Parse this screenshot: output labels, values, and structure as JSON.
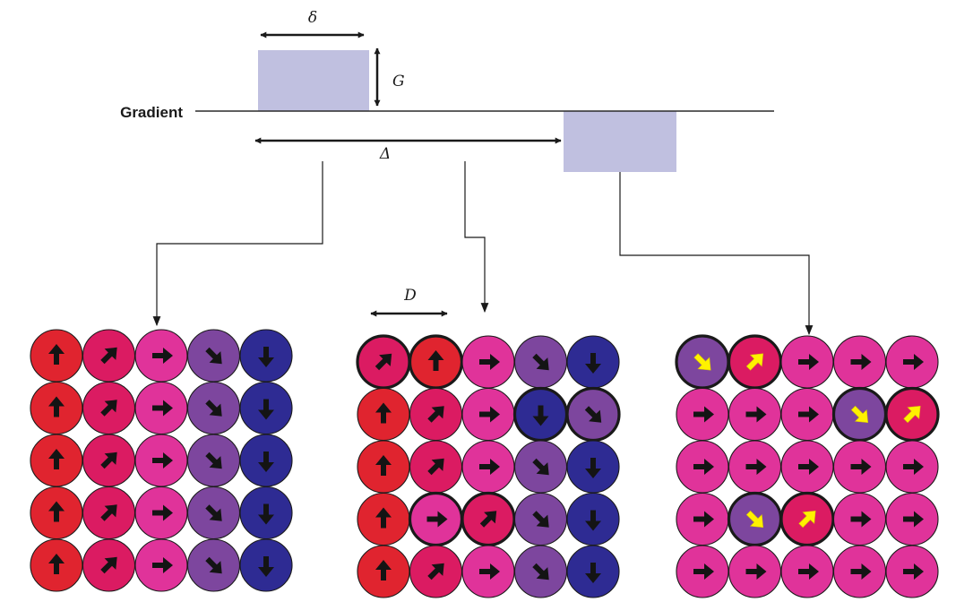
{
  "labels": {
    "gradient": "Gradient",
    "delta_small": "δ",
    "G": "G",
    "Delta_big": "Δ",
    "D": "D"
  },
  "colors": {
    "pulse": "#c0c0e0",
    "line": "#2a2a2a",
    "red": "#e0242f",
    "crimson": "#db1b62",
    "pink": "#e0339a",
    "purple": "#7d469e",
    "navy": "#2e2b93",
    "arrow_black": "#141414",
    "arrow_yellow": "#fff200"
  },
  "grid_legend": {
    "color_codes": {
      "R": "red",
      "C": "crimson",
      "P": "pink",
      "V": "purple",
      "N": "navy"
    },
    "arrow_codes": {
      "U": "up",
      "UR": "up-right",
      "R": "right",
      "DR": "down-right",
      "D": "down"
    }
  },
  "grids": [
    {
      "name": "before-diffusion-grid",
      "cells": [
        [
          [
            "R",
            "U",
            0,
            0
          ],
          [
            "C",
            "UR",
            0,
            0
          ],
          [
            "P",
            "R",
            0,
            0
          ],
          [
            "V",
            "DR",
            0,
            0
          ],
          [
            "N",
            "D",
            0,
            0
          ]
        ],
        [
          [
            "R",
            "U",
            0,
            0
          ],
          [
            "C",
            "UR",
            0,
            0
          ],
          [
            "P",
            "R",
            0,
            0
          ],
          [
            "V",
            "DR",
            0,
            0
          ],
          [
            "N",
            "D",
            0,
            0
          ]
        ],
        [
          [
            "R",
            "U",
            0,
            0
          ],
          [
            "C",
            "UR",
            0,
            0
          ],
          [
            "P",
            "R",
            0,
            0
          ],
          [
            "V",
            "DR",
            0,
            0
          ],
          [
            "N",
            "D",
            0,
            0
          ]
        ],
        [
          [
            "R",
            "U",
            0,
            0
          ],
          [
            "C",
            "UR",
            0,
            0
          ],
          [
            "P",
            "R",
            0,
            0
          ],
          [
            "V",
            "DR",
            0,
            0
          ],
          [
            "N",
            "D",
            0,
            0
          ]
        ],
        [
          [
            "R",
            "U",
            0,
            0
          ],
          [
            "C",
            "UR",
            0,
            0
          ],
          [
            "P",
            "R",
            0,
            0
          ],
          [
            "V",
            "DR",
            0,
            0
          ],
          [
            "N",
            "D",
            0,
            0
          ]
        ]
      ]
    },
    {
      "name": "during-diffusion-grid",
      "cells": [
        [
          [
            "C",
            "UR",
            1,
            0
          ],
          [
            "R",
            "U",
            1,
            0
          ],
          [
            "P",
            "R",
            0,
            0
          ],
          [
            "V",
            "DR",
            0,
            0
          ],
          [
            "N",
            "D",
            0,
            0
          ]
        ],
        [
          [
            "R",
            "U",
            0,
            0
          ],
          [
            "C",
            "UR",
            0,
            0
          ],
          [
            "P",
            "R",
            0,
            0
          ],
          [
            "N",
            "D",
            1,
            0
          ],
          [
            "V",
            "DR",
            1,
            0
          ]
        ],
        [
          [
            "R",
            "U",
            0,
            0
          ],
          [
            "C",
            "UR",
            0,
            0
          ],
          [
            "P",
            "R",
            0,
            0
          ],
          [
            "V",
            "DR",
            0,
            0
          ],
          [
            "N",
            "D",
            0,
            0
          ]
        ],
        [
          [
            "R",
            "U",
            0,
            0
          ],
          [
            "P",
            "R",
            1,
            0
          ],
          [
            "C",
            "UR",
            1,
            0
          ],
          [
            "V",
            "DR",
            0,
            0
          ],
          [
            "N",
            "D",
            0,
            0
          ]
        ],
        [
          [
            "R",
            "U",
            0,
            0
          ],
          [
            "C",
            "UR",
            0,
            0
          ],
          [
            "P",
            "R",
            0,
            0
          ],
          [
            "V",
            "DR",
            0,
            0
          ],
          [
            "N",
            "D",
            0,
            0
          ]
        ]
      ]
    },
    {
      "name": "after-refocus-grid",
      "cells": [
        [
          [
            "V",
            "DR",
            1,
            1
          ],
          [
            "C",
            "UR",
            1,
            1
          ],
          [
            "P",
            "R",
            0,
            0
          ],
          [
            "P",
            "R",
            0,
            0
          ],
          [
            "P",
            "R",
            0,
            0
          ]
        ],
        [
          [
            "P",
            "R",
            0,
            0
          ],
          [
            "P",
            "R",
            0,
            0
          ],
          [
            "P",
            "R",
            0,
            0
          ],
          [
            "V",
            "DR",
            1,
            1
          ],
          [
            "C",
            "UR",
            1,
            1
          ]
        ],
        [
          [
            "P",
            "R",
            0,
            0
          ],
          [
            "P",
            "R",
            0,
            0
          ],
          [
            "P",
            "R",
            0,
            0
          ],
          [
            "P",
            "R",
            0,
            0
          ],
          [
            "P",
            "R",
            0,
            0
          ]
        ],
        [
          [
            "P",
            "R",
            0,
            0
          ],
          [
            "V",
            "DR",
            1,
            1
          ],
          [
            "C",
            "UR",
            1,
            1
          ],
          [
            "P",
            "R",
            0,
            0
          ],
          [
            "P",
            "R",
            0,
            0
          ]
        ],
        [
          [
            "P",
            "R",
            0,
            0
          ],
          [
            "P",
            "R",
            0,
            0
          ],
          [
            "P",
            "R",
            0,
            0
          ],
          [
            "P",
            "R",
            0,
            0
          ],
          [
            "P",
            "R",
            0,
            0
          ]
        ]
      ]
    }
  ]
}
